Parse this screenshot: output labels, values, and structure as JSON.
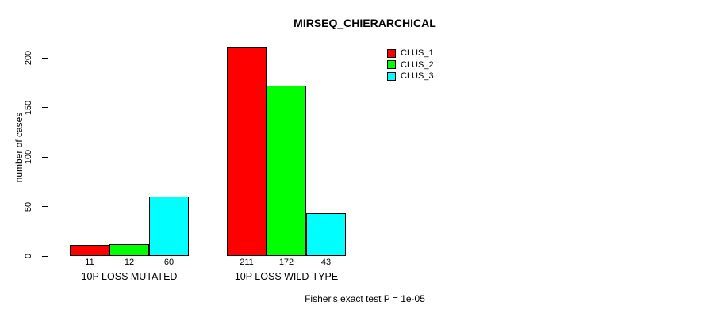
{
  "title": "MIRSEQ_CHIERARCHICAL",
  "footer": "Fisher's exact test P = 1e-05",
  "chart_data": {
    "type": "bar",
    "title": "MIRSEQ_CHIERARCHICAL",
    "xlabel": "",
    "ylabel": "number of cases",
    "categories": [
      "10P LOSS MUTATED",
      "10P LOSS WILD-TYPE"
    ],
    "series": [
      {
        "name": "CLUS_1",
        "color": "#ff0000",
        "values": [
          11,
          211
        ]
      },
      {
        "name": "CLUS_2",
        "color": "#00ff00",
        "values": [
          12,
          172
        ]
      },
      {
        "name": "CLUS_3",
        "color": "#00ffff",
        "values": [
          60,
          43
        ]
      }
    ],
    "value_labels_shown_under_bars": [
      [
        11,
        12,
        60
      ],
      [
        211,
        172,
        43
      ]
    ],
    "yticks": [
      0,
      50,
      100,
      150,
      200
    ],
    "ylim": [
      0,
      200
    ],
    "grid": false,
    "legend_position": "top-right",
    "annotation": "Fisher's exact test P = 1e-05",
    "bar_border_color": "#000000",
    "background_color": "#ffffff"
  }
}
